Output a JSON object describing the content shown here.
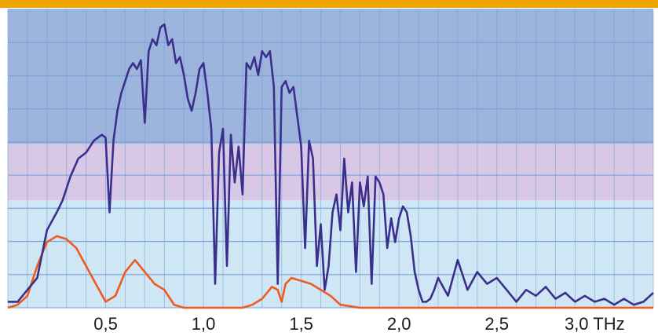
{
  "chart_data": {
    "type": "line",
    "title": "",
    "xlabel": "",
    "ylabel": "",
    "xlim": [
      0.0,
      3.3
    ],
    "ylim": [
      0,
      1.0
    ],
    "grid": true,
    "x_ticks": [
      {
        "value": 0.5,
        "label": "0,5"
      },
      {
        "value": 1.0,
        "label": "1,0"
      },
      {
        "value": 1.5,
        "label": "1,5"
      },
      {
        "value": 2.0,
        "label": "2,0"
      },
      {
        "value": 2.5,
        "label": "2,5"
      },
      {
        "value": 3.0,
        "label": "3,0 THz"
      }
    ],
    "bands": [
      {
        "y0": 0.55,
        "y1": 1.0,
        "color": "#9db4dc"
      },
      {
        "y0": 0.36,
        "y1": 0.55,
        "color": "#d8c8e6"
      },
      {
        "y0": 0.0,
        "y1": 0.36,
        "color": "#cfe6f5"
      }
    ],
    "colors": {
      "top_bar": "#f0a500",
      "grid": "#6f9fd8",
      "series_1": "#3b2f8c",
      "series_2": "#f05a1e"
    },
    "series": [
      {
        "name": "",
        "color": "#3b2f8c",
        "x": [
          0.0,
          0.05,
          0.1,
          0.15,
          0.2,
          0.25,
          0.28,
          0.32,
          0.36,
          0.4,
          0.44,
          0.48,
          0.5,
          0.52,
          0.54,
          0.56,
          0.58,
          0.6,
          0.62,
          0.64,
          0.66,
          0.68,
          0.7,
          0.72,
          0.74,
          0.76,
          0.78,
          0.8,
          0.82,
          0.84,
          0.86,
          0.88,
          0.9,
          0.92,
          0.94,
          0.96,
          0.98,
          1.0,
          1.02,
          1.04,
          1.06,
          1.08,
          1.1,
          1.12,
          1.14,
          1.16,
          1.18,
          1.2,
          1.22,
          1.24,
          1.26,
          1.28,
          1.3,
          1.32,
          1.34,
          1.36,
          1.38,
          1.4,
          1.42,
          1.44,
          1.46,
          1.48,
          1.5,
          1.52,
          1.54,
          1.56,
          1.58,
          1.6,
          1.62,
          1.64,
          1.66,
          1.68,
          1.7,
          1.72,
          1.74,
          1.76,
          1.78,
          1.8,
          1.82,
          1.84,
          1.86,
          1.88,
          1.9,
          1.92,
          1.94,
          1.96,
          1.98,
          2.0,
          2.02,
          2.04,
          2.06,
          2.08,
          2.1,
          2.12,
          2.14,
          2.16,
          2.18,
          2.2,
          2.25,
          2.3,
          2.35,
          2.4,
          2.45,
          2.5,
          2.55,
          2.6,
          2.65,
          2.7,
          2.75,
          2.8,
          2.85,
          2.9,
          2.95,
          3.0,
          3.05,
          3.1,
          3.15,
          3.2,
          3.25,
          3.3
        ],
        "values": [
          0.02,
          0.02,
          0.06,
          0.1,
          0.26,
          0.32,
          0.36,
          0.44,
          0.5,
          0.52,
          0.56,
          0.58,
          0.57,
          0.32,
          0.56,
          0.66,
          0.72,
          0.76,
          0.8,
          0.82,
          0.8,
          0.83,
          0.62,
          0.86,
          0.9,
          0.88,
          0.94,
          0.95,
          0.88,
          0.9,
          0.82,
          0.84,
          0.78,
          0.7,
          0.66,
          0.72,
          0.8,
          0.82,
          0.72,
          0.6,
          0.08,
          0.52,
          0.6,
          0.14,
          0.58,
          0.42,
          0.54,
          0.38,
          0.82,
          0.8,
          0.84,
          0.78,
          0.86,
          0.84,
          0.86,
          0.74,
          0.08,
          0.74,
          0.76,
          0.72,
          0.74,
          0.64,
          0.54,
          0.2,
          0.56,
          0.5,
          0.14,
          0.28,
          0.06,
          0.14,
          0.32,
          0.38,
          0.26,
          0.5,
          0.32,
          0.42,
          0.12,
          0.42,
          0.34,
          0.44,
          0.08,
          0.44,
          0.42,
          0.38,
          0.2,
          0.3,
          0.22,
          0.3,
          0.34,
          0.32,
          0.24,
          0.12,
          0.06,
          0.02,
          0.02,
          0.03,
          0.06,
          0.1,
          0.04,
          0.16,
          0.06,
          0.12,
          0.08,
          0.1,
          0.06,
          0.02,
          0.06,
          0.04,
          0.07,
          0.03,
          0.05,
          0.02,
          0.04,
          0.02,
          0.03,
          0.01,
          0.03,
          0.01,
          0.02,
          0.05
        ]
      },
      {
        "name": "",
        "color": "#f05a1e",
        "x": [
          0.0,
          0.05,
          0.1,
          0.15,
          0.2,
          0.25,
          0.3,
          0.35,
          0.4,
          0.45,
          0.5,
          0.55,
          0.6,
          0.65,
          0.7,
          0.75,
          0.8,
          0.85,
          0.9,
          0.95,
          1.0,
          1.1,
          1.2,
          1.25,
          1.3,
          1.35,
          1.38,
          1.4,
          1.42,
          1.45,
          1.5,
          1.55,
          1.6,
          1.65,
          1.7,
          1.8,
          2.0,
          2.2,
          2.5,
          3.0,
          3.3
        ],
        "values": [
          0.0,
          0.01,
          0.04,
          0.14,
          0.22,
          0.24,
          0.23,
          0.2,
          0.14,
          0.08,
          0.02,
          0.04,
          0.12,
          0.16,
          0.12,
          0.08,
          0.06,
          0.01,
          0.0,
          0.0,
          0.0,
          0.0,
          0.0,
          0.01,
          0.03,
          0.07,
          0.06,
          0.02,
          0.08,
          0.1,
          0.09,
          0.08,
          0.06,
          0.04,
          0.01,
          0.0,
          0.0,
          0.0,
          0.0,
          0.0,
          0.0
        ]
      }
    ]
  }
}
